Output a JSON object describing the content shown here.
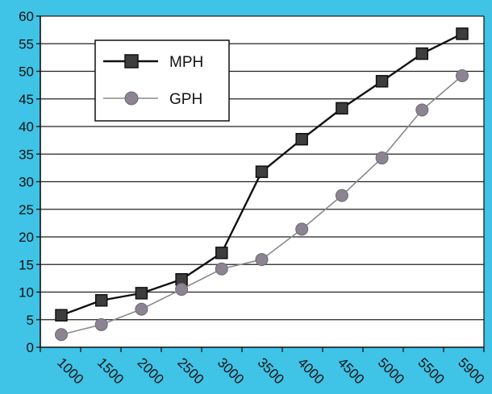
{
  "chart_data": {
    "type": "line",
    "categories": [
      "1000",
      "1500",
      "2000",
      "2500",
      "3000",
      "3500",
      "4000",
      "4500",
      "5000",
      "5500",
      "5900"
    ],
    "yticks": [
      "0",
      "5",
      "10",
      "15",
      "20",
      "25",
      "30",
      "35",
      "40",
      "45",
      "50",
      "55",
      "60"
    ],
    "ylim": [
      0,
      60
    ],
    "grid": "horizontal",
    "legend_position": "top-left",
    "series": [
      {
        "name": "MPH",
        "marker": "square",
        "color": "#111111",
        "marker_fill": "#3d3d3d",
        "values": [
          5.8,
          8.5,
          9.8,
          12.3,
          17.1,
          31.8,
          37.7,
          43.3,
          48.2,
          53.2,
          56.8
        ]
      },
      {
        "name": "GPH",
        "marker": "circle",
        "color": "#8a8a8a",
        "marker_fill": "#8c8490",
        "values": [
          2.3,
          4.1,
          6.9,
          10.5,
          14.2,
          15.9,
          21.4,
          27.5,
          34.3,
          43.0,
          49.2
        ]
      }
    ]
  },
  "colors": {
    "background": "#3fc3e6",
    "plot_area": "#ffffff",
    "gridline": "#222222"
  }
}
